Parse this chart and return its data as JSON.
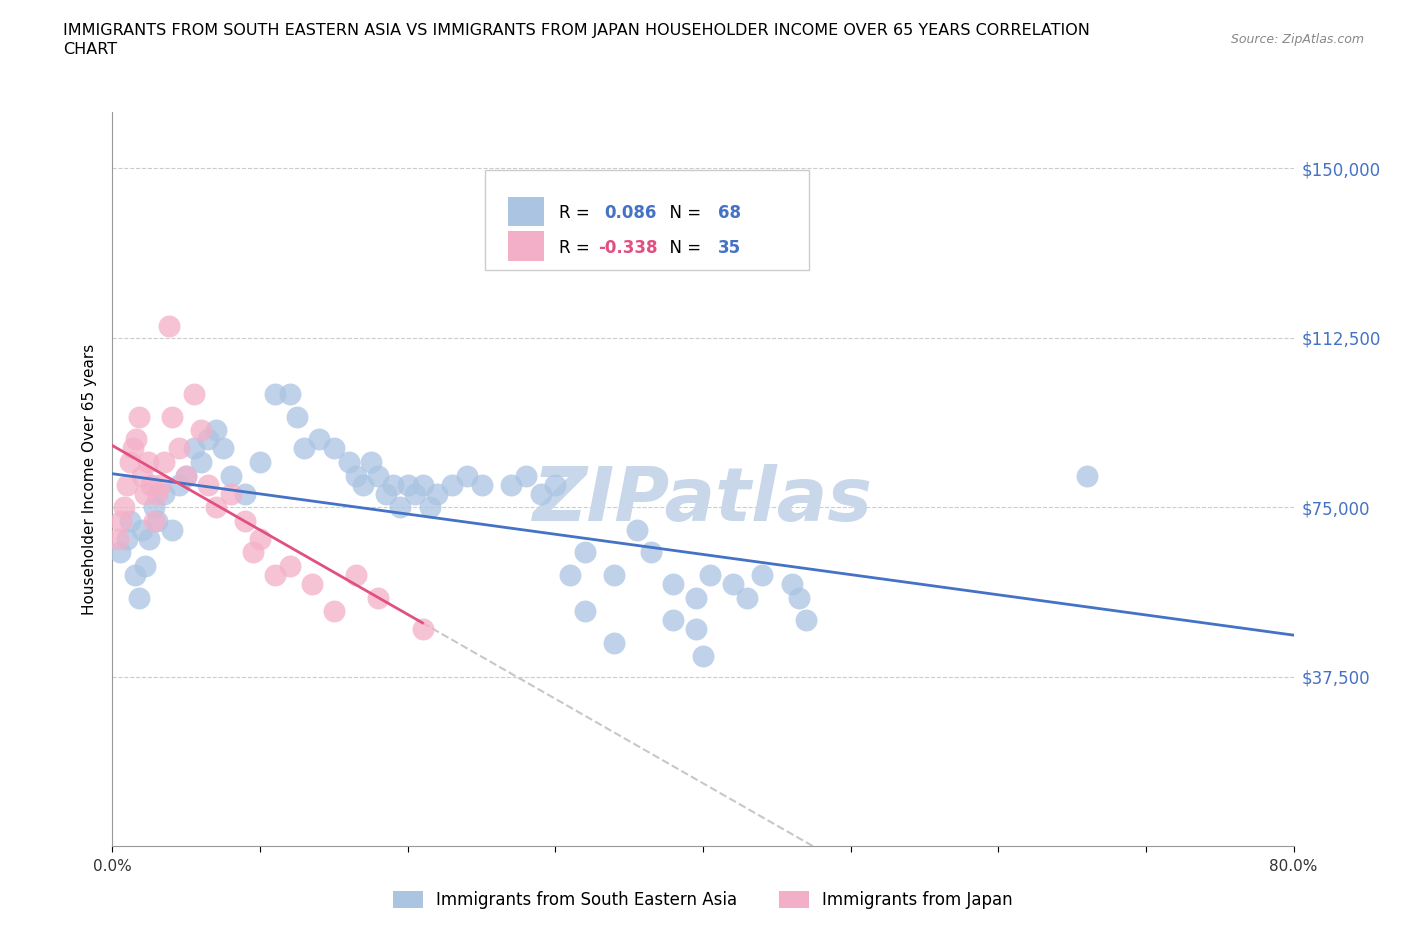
{
  "title_line1": "IMMIGRANTS FROM SOUTH EASTERN ASIA VS IMMIGRANTS FROM JAPAN HOUSEHOLDER INCOME OVER 65 YEARS CORRELATION",
  "title_line2": "CHART",
  "source_text": "Source: ZipAtlas.com",
  "ylabel": "Householder Income Over 65 years",
  "xlim": [
    0.0,
    0.8
  ],
  "ylim": [
    0,
    162500
  ],
  "ytick_vals": [
    37500,
    75000,
    112500,
    150000
  ],
  "ytick_labels": [
    "$37,500",
    "$75,000",
    "$112,500",
    "$150,000"
  ],
  "xticks": [
    0.0,
    0.1,
    0.2,
    0.3,
    0.4,
    0.5,
    0.6,
    0.7,
    0.8
  ],
  "xtick_labels": [
    "0.0%",
    "",
    "",
    "",
    "",
    "",
    "",
    "",
    "80.0%"
  ],
  "series1_label": "Immigrants from South Eastern Asia",
  "series2_label": "Immigrants from Japan",
  "series1_color": "#aac4e2",
  "series2_color": "#f4afc8",
  "series1_R": "0.086",
  "series1_N": "68",
  "series2_R": "-0.338",
  "series2_N": "35",
  "series1_R_color": "#4472c4",
  "series2_R_color": "#e05080",
  "trendline1_color": "#4472c4",
  "trendline2_color": "#e05080",
  "trendline_dashed_color": "#c8c8c8",
  "watermark": "ZIPatlas",
  "watermark_color": "#c8d8ea",
  "background_color": "#ffffff",
  "grid_color": "#cccccc",
  "series1_x": [
    0.005,
    0.01,
    0.012,
    0.015,
    0.018,
    0.02,
    0.022,
    0.025,
    0.028,
    0.03,
    0.035,
    0.04,
    0.045,
    0.05,
    0.055,
    0.06,
    0.065,
    0.07,
    0.075,
    0.08,
    0.09,
    0.1,
    0.11,
    0.12,
    0.125,
    0.13,
    0.14,
    0.15,
    0.16,
    0.165,
    0.17,
    0.175,
    0.18,
    0.185,
    0.19,
    0.195,
    0.2,
    0.205,
    0.21,
    0.215,
    0.22,
    0.23,
    0.24,
    0.25,
    0.27,
    0.28,
    0.29,
    0.3,
    0.31,
    0.32,
    0.34,
    0.355,
    0.365,
    0.38,
    0.395,
    0.405,
    0.42,
    0.43,
    0.44,
    0.46,
    0.465,
    0.47,
    0.38,
    0.395,
    0.4,
    0.32,
    0.34,
    0.66
  ],
  "series1_y": [
    65000,
    68000,
    72000,
    60000,
    55000,
    70000,
    62000,
    68000,
    75000,
    72000,
    78000,
    70000,
    80000,
    82000,
    88000,
    85000,
    90000,
    92000,
    88000,
    82000,
    78000,
    85000,
    100000,
    100000,
    95000,
    88000,
    90000,
    88000,
    85000,
    82000,
    80000,
    85000,
    82000,
    78000,
    80000,
    75000,
    80000,
    78000,
    80000,
    75000,
    78000,
    80000,
    82000,
    80000,
    80000,
    82000,
    78000,
    80000,
    60000,
    65000,
    60000,
    70000,
    65000,
    58000,
    55000,
    60000,
    58000,
    55000,
    60000,
    58000,
    55000,
    50000,
    50000,
    48000,
    42000,
    52000,
    45000,
    82000
  ],
  "series2_x": [
    0.004,
    0.006,
    0.008,
    0.01,
    0.012,
    0.014,
    0.016,
    0.018,
    0.02,
    0.022,
    0.024,
    0.026,
    0.028,
    0.03,
    0.032,
    0.035,
    0.038,
    0.04,
    0.045,
    0.05,
    0.055,
    0.06,
    0.065,
    0.07,
    0.08,
    0.09,
    0.095,
    0.1,
    0.11,
    0.12,
    0.135,
    0.15,
    0.165,
    0.18,
    0.21
  ],
  "series2_y": [
    68000,
    72000,
    75000,
    80000,
    85000,
    88000,
    90000,
    95000,
    82000,
    78000,
    85000,
    80000,
    72000,
    78000,
    80000,
    85000,
    115000,
    95000,
    88000,
    82000,
    100000,
    92000,
    80000,
    75000,
    78000,
    72000,
    65000,
    68000,
    60000,
    62000,
    58000,
    52000,
    60000,
    55000,
    48000
  ],
  "trendline1_x_start": 0.0,
  "trendline1_x_end": 0.8,
  "trendline2_solid_x_end": 0.21,
  "trendline2_dash_x_end": 0.57
}
